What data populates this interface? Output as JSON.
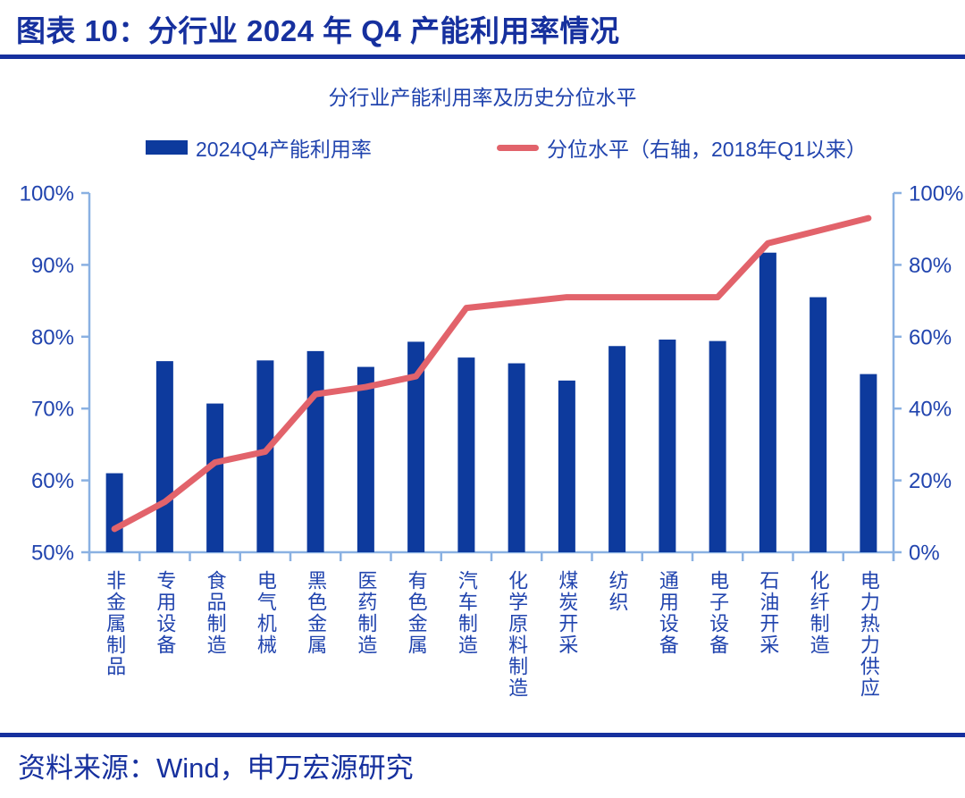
{
  "header": {
    "title": "图表 10：分行业 2024 年 Q4 产能利用率情况"
  },
  "footer": {
    "source": "资料来源：Wind，申万宏源研究"
  },
  "colors": {
    "bar": "#0d3a9d",
    "line": "#e2636b",
    "axis": "#8ab1e2",
    "tick_text": "#2144ae",
    "heading": "#16309e"
  },
  "chart_data": {
    "type": "combo",
    "title": "分行业产能利用率及历史分位水平",
    "legend_position": "top",
    "legend": [
      {
        "label": "2024Q4产能利用率",
        "marker": "bar"
      },
      {
        "label": "分位水平（右轴，2018年Q1以来）",
        "marker": "line"
      }
    ],
    "categories": [
      "非金属制品",
      "专用设备",
      "食品制造",
      "电气机械",
      "黑色金属",
      "医药制造",
      "有色金属",
      "汽车制造",
      "化学原料制造",
      "煤炭开采",
      "纺织",
      "通用设备",
      "电子设备",
      "石油开采",
      "化纤制造",
      "电力热力供应"
    ],
    "series": [
      {
        "name": "2024Q4产能利用率",
        "type": "bar",
        "axis": "left",
        "values": [
          61.0,
          76.6,
          70.7,
          76.7,
          78.0,
          75.8,
          79.3,
          77.1,
          76.3,
          73.9,
          78.7,
          79.6,
          79.4,
          91.7,
          85.5,
          74.8
        ]
      },
      {
        "name": "分位水平（右轴，2018年Q1以来）",
        "type": "line",
        "axis": "right",
        "values": [
          6.5,
          14,
          25,
          28,
          44,
          46,
          49,
          68,
          69.5,
          71,
          71,
          71,
          71,
          86,
          89.5,
          93
        ]
      }
    ],
    "left_axis": {
      "min": 50,
      "max": 100,
      "tick_values": [
        50,
        60,
        70,
        80,
        90,
        100
      ],
      "tick_labels": [
        "50%",
        "60%",
        "70%",
        "80%",
        "90%",
        "100%"
      ]
    },
    "right_axis": {
      "min": 0,
      "max": 100,
      "tick_values": [
        0,
        20,
        40,
        60,
        80,
        100
      ],
      "tick_labels": [
        "0%",
        "20%",
        "40%",
        "60%",
        "80%",
        "100%"
      ]
    },
    "grid": false
  }
}
